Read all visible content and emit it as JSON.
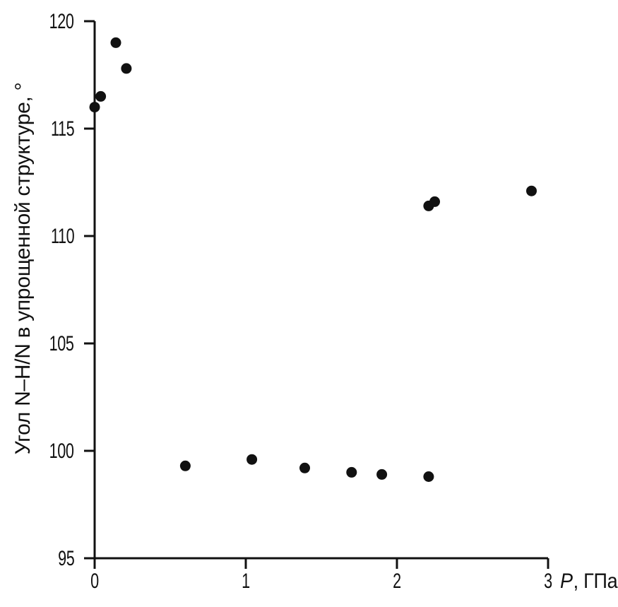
{
  "figure": {
    "background": "#ffffff",
    "ink": "#111111"
  },
  "chart_data": {
    "type": "scatter",
    "title": "",
    "xlabel": "P, ГПа",
    "xlabel_variable": "P",
    "xlabel_unit": ", ГПа",
    "ylabel": "Угол N–H/N в упрощенной структуре, °",
    "xlim": [
      0,
      3
    ],
    "ylim": [
      95,
      120
    ],
    "xticks": [
      0,
      1,
      2,
      3
    ],
    "yticks": [
      95,
      100,
      105,
      110,
      115,
      120
    ],
    "grid": false,
    "legend": "none",
    "marker": {
      "shape": "filled-circle",
      "color": "#111111",
      "radius_px": 7.5
    },
    "series": [
      {
        "name": "угол N–H/N",
        "points": [
          {
            "x": 0.0,
            "y": 116.0
          },
          {
            "x": 0.04,
            "y": 116.5
          },
          {
            "x": 0.14,
            "y": 119.0
          },
          {
            "x": 0.21,
            "y": 117.8
          },
          {
            "x": 0.6,
            "y": 99.3
          },
          {
            "x": 1.04,
            "y": 99.6
          },
          {
            "x": 1.39,
            "y": 99.2
          },
          {
            "x": 1.7,
            "y": 99.0
          },
          {
            "x": 1.9,
            "y": 98.9
          },
          {
            "x": 2.21,
            "y": 98.8
          },
          {
            "x": 2.21,
            "y": 111.4
          },
          {
            "x": 2.25,
            "y": 111.6
          },
          {
            "x": 2.89,
            "y": 112.1
          }
        ]
      }
    ]
  }
}
